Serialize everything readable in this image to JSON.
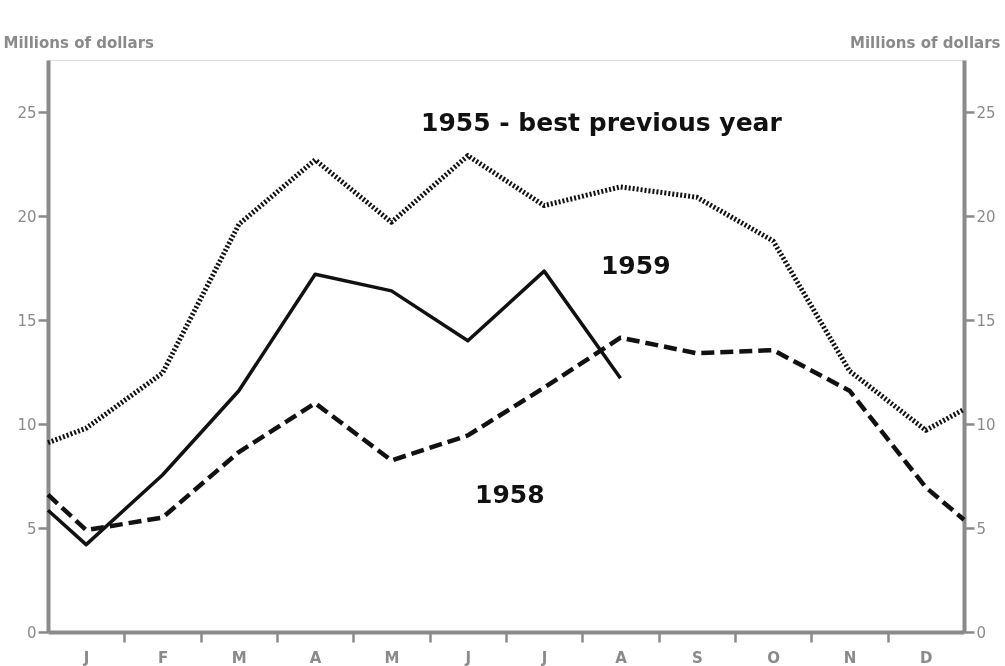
{
  "chart_data": {
    "type": "line",
    "ylabel": "Millions of dollars",
    "y2label": "Millions of dollars",
    "categories": [
      null,
      "J",
      null,
      "F",
      null,
      "M",
      null,
      "A",
      null,
      "M",
      null,
      "J",
      null,
      "J",
      null,
      "A",
      null,
      "S",
      null,
      "O",
      null,
      "N",
      null,
      "D",
      null
    ],
    "series": [
      {
        "color": "#111111",
        "line_style": "dotted",
        "values": [
          9.1,
          9.8,
          null,
          12.45,
          null,
          19.6,
          null,
          22.7,
          null,
          19.7,
          null,
          22.9,
          null,
          20.5,
          null,
          21.4,
          null,
          20.9,
          null,
          18.8,
          null,
          12.55,
          null,
          9.7,
          10.7
        ]
      },
      {
        "color": "#111111",
        "line_style": "dashed",
        "values": [
          6.6,
          4.9,
          null,
          5.5,
          null,
          8.65,
          null,
          11.0,
          null,
          8.25,
          null,
          9.45,
          null,
          11.75,
          null,
          14.15,
          null,
          13.4,
          null,
          13.55,
          null,
          11.6,
          null,
          6.95,
          5.4
        ]
      },
      {
        "color": "#111111",
        "line_style": "solid",
        "values": [
          5.85,
          4.2,
          null,
          7.55,
          null,
          11.6,
          null,
          17.2,
          null,
          16.4,
          null,
          14.0,
          null,
          17.35,
          null,
          12.2,
          null,
          null,
          null,
          null,
          null,
          null,
          null,
          null,
          null
        ]
      }
    ],
    "ylim": [
      0,
      27.5
    ],
    "yticks": [
      0,
      5,
      10,
      15,
      20,
      25
    ],
    "y2lim": [
      0,
      27.5
    ],
    "y2ticks": [
      0,
      5,
      10,
      15,
      20,
      25
    ],
    "annotations": [
      "1955 - best previous year",
      "1959",
      "1958"
    ],
    "grid": false
  }
}
